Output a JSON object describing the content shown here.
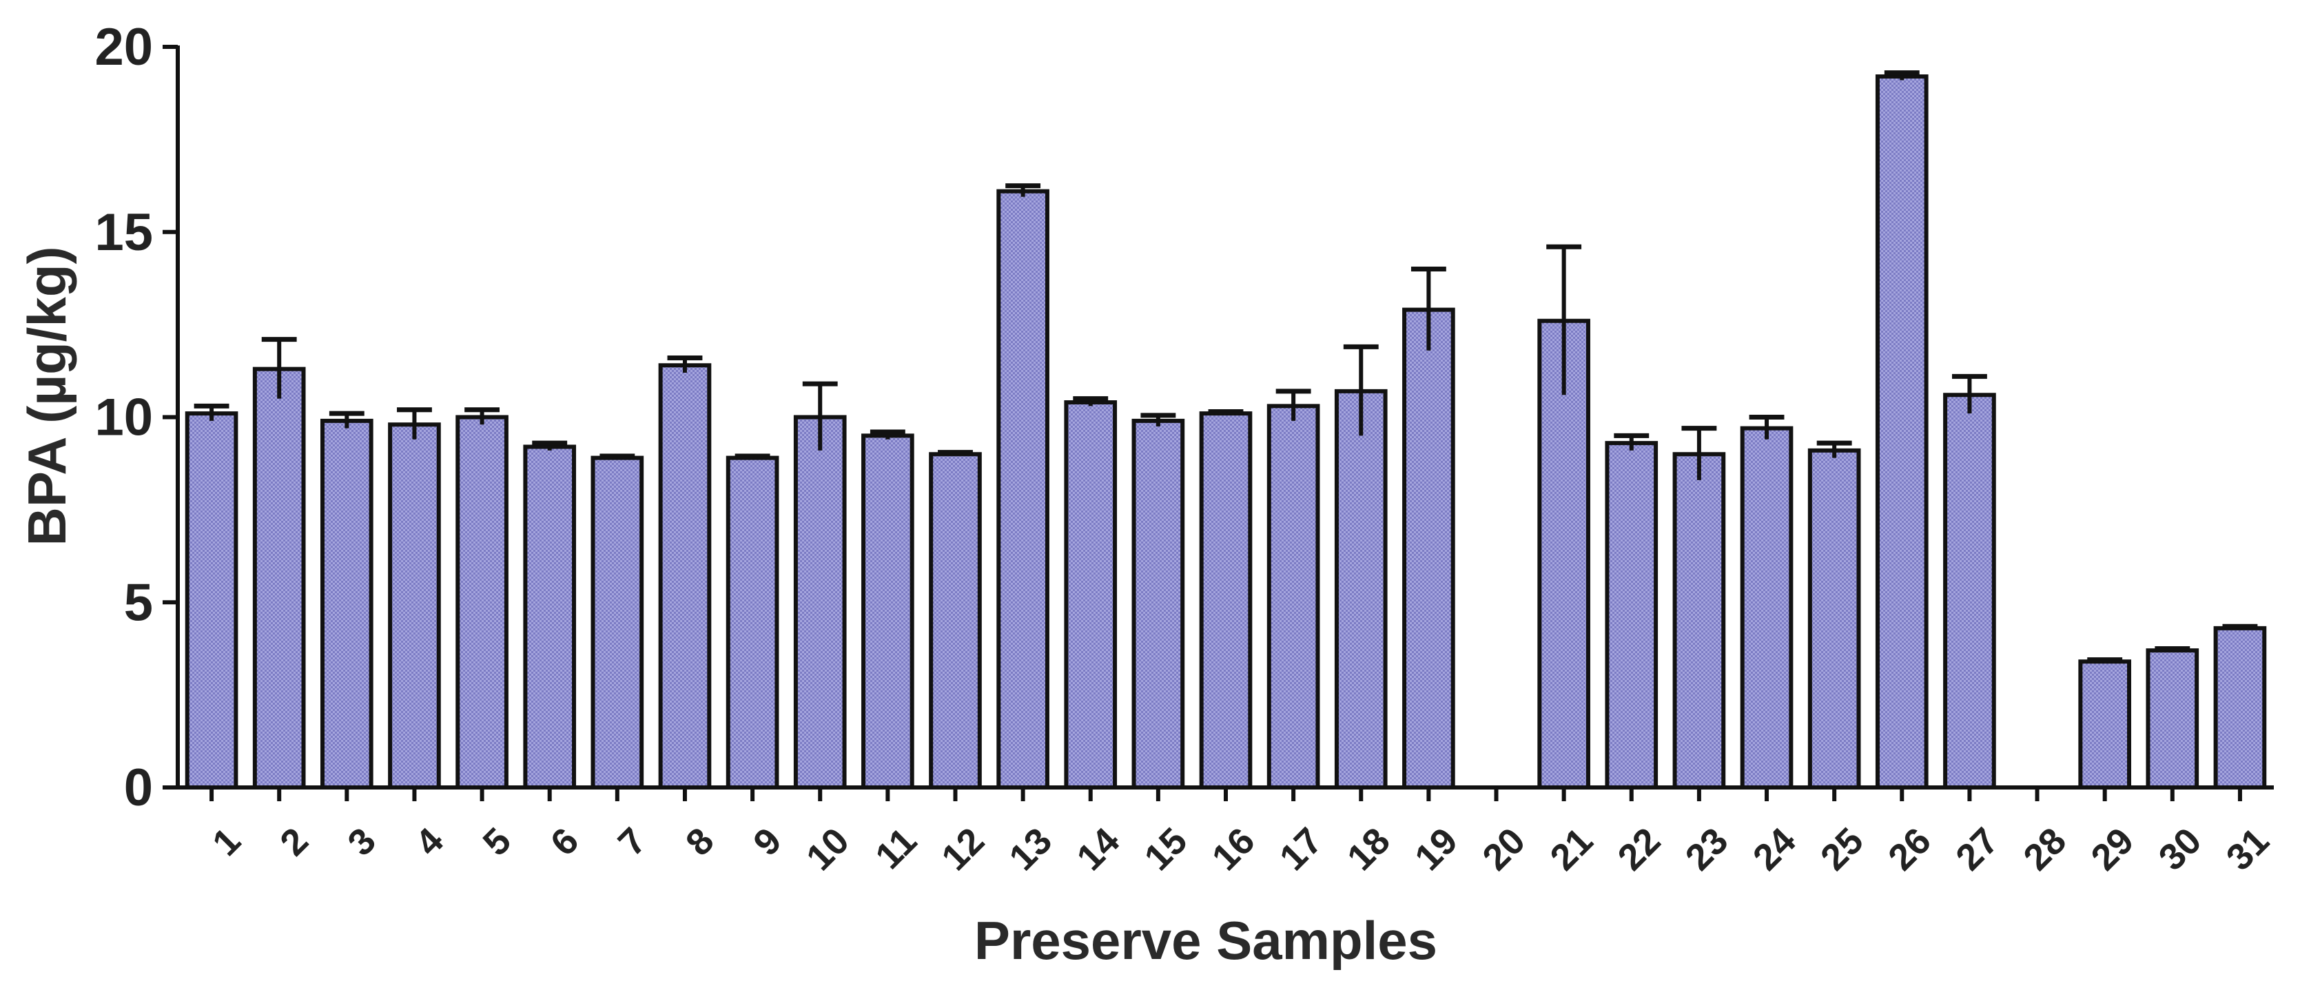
{
  "chart_data": {
    "type": "bar",
    "title": "",
    "xlabel": "Preserve Samples",
    "ylabel": "BPA (µg/kg)",
    "ylim": [
      0,
      20
    ],
    "yticks": [
      0,
      5,
      10,
      15,
      20
    ],
    "grid": false,
    "legend": "none",
    "bar_color": "#9a9ad6",
    "bar_edge_color": "#111111",
    "categories": [
      "1",
      "2",
      "3",
      "4",
      "5",
      "6",
      "7",
      "8",
      "9",
      "10",
      "11",
      "12",
      "13",
      "14",
      "15",
      "16",
      "17",
      "18",
      "19",
      "20",
      "21",
      "22",
      "23",
      "24",
      "25",
      "26",
      "27",
      "28",
      "29",
      "30",
      "31"
    ],
    "values": [
      10.1,
      11.3,
      9.9,
      9.8,
      10.0,
      9.2,
      8.9,
      11.4,
      8.9,
      10.0,
      9.5,
      9.0,
      16.1,
      10.4,
      9.9,
      10.1,
      10.3,
      10.7,
      12.9,
      0,
      12.6,
      9.3,
      9.0,
      9.7,
      9.1,
      19.2,
      10.6,
      0,
      3.4,
      3.7,
      4.3
    ],
    "errors": [
      0.2,
      0.8,
      0.2,
      0.4,
      0.2,
      0.1,
      0.05,
      0.2,
      0.05,
      0.9,
      0.1,
      0.05,
      0.15,
      0.1,
      0.15,
      0.05,
      0.4,
      1.2,
      1.1,
      0,
      2.0,
      0.2,
      0.7,
      0.3,
      0.2,
      0.1,
      0.5,
      0,
      0.05,
      0.05,
      0.05
    ]
  }
}
